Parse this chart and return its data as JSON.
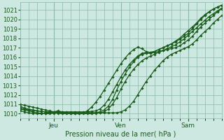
{
  "title": "",
  "xlabel": "Pression niveau de la mer( hPa )",
  "ylabel": "",
  "bg_color": "#cce8e0",
  "grid_color": "#88bba8",
  "line_color": "#1a5c1a",
  "marker_color": "#1a5c1a",
  "ylim": [
    1009.5,
    1021.8
  ],
  "xlim": [
    0,
    96
  ],
  "yticks": [
    1010,
    1011,
    1012,
    1013,
    1014,
    1015,
    1016,
    1017,
    1018,
    1019,
    1020,
    1021
  ],
  "xtick_positions": [
    16,
    48,
    80
  ],
  "xtick_labels": [
    "Jeu",
    "Ven",
    "Sam"
  ],
  "series_x": [
    [
      0,
      2,
      4,
      6,
      8,
      10,
      12,
      14,
      16,
      18,
      20,
      22,
      24,
      26,
      28,
      30,
      32,
      34,
      36,
      38,
      40,
      42,
      44,
      46,
      48,
      50,
      52,
      54,
      56,
      58,
      60,
      62,
      64,
      66,
      68,
      70,
      72,
      74,
      76,
      78,
      80,
      82,
      84,
      86,
      88,
      90,
      92,
      94,
      96
    ],
    [
      0,
      2,
      4,
      6,
      8,
      10,
      12,
      14,
      16,
      18,
      20,
      22,
      24,
      26,
      28,
      30,
      32,
      34,
      36,
      38,
      40,
      42,
      44,
      46,
      48,
      50,
      52,
      54,
      56,
      58,
      60,
      62,
      64,
      66,
      68,
      70,
      72,
      74,
      76,
      78,
      80,
      82,
      84,
      86,
      88,
      90,
      92,
      94,
      96
    ],
    [
      0,
      2,
      4,
      6,
      8,
      10,
      12,
      14,
      16,
      18,
      20,
      22,
      24,
      26,
      28,
      30,
      32,
      34,
      36,
      38,
      40,
      42,
      44,
      46,
      48,
      50,
      52,
      54,
      56,
      58,
      60,
      62,
      64,
      66,
      68,
      70,
      72,
      74,
      76,
      78,
      80,
      82,
      84,
      86,
      88,
      90,
      92,
      94,
      96
    ],
    [
      0,
      2,
      4,
      6,
      8,
      10,
      12,
      14,
      16,
      18,
      20,
      22,
      24,
      26,
      28,
      30,
      32,
      34,
      36,
      38,
      40,
      42,
      44,
      46,
      48,
      50,
      52,
      54,
      56,
      58,
      60,
      62,
      64,
      66,
      68,
      70,
      72,
      74,
      76,
      78,
      80,
      82,
      84,
      86,
      88,
      90,
      92,
      94,
      96
    ],
    [
      0,
      2,
      4,
      6,
      8,
      10,
      12,
      14,
      16,
      18,
      20,
      22,
      24,
      26,
      28,
      30,
      32,
      34,
      36,
      38,
      40,
      42,
      44,
      46,
      48,
      50,
      52,
      54,
      56,
      58,
      60,
      62,
      64,
      66,
      68,
      70,
      72,
      74,
      76,
      78,
      80,
      82,
      84,
      86,
      88,
      90,
      92,
      94,
      96
    ]
  ],
  "series_y": [
    [
      1010.3,
      1010.2,
      1010.1,
      1010.05,
      1010.0,
      1010.0,
      1010.05,
      1010.1,
      1010.2,
      1010.3,
      1010.2,
      1010.1,
      1010.05,
      1010.0,
      1010.0,
      1010.1,
      1010.3,
      1010.7,
      1011.2,
      1011.8,
      1012.5,
      1013.2,
      1013.9,
      1014.6,
      1015.3,
      1015.9,
      1016.4,
      1016.8,
      1017.05,
      1016.9,
      1016.6,
      1016.5,
      1016.6,
      1016.8,
      1017.0,
      1017.2,
      1017.4,
      1017.6,
      1017.9,
      1018.2,
      1018.5,
      1019.0,
      1019.5,
      1020.0,
      1020.4,
      1020.8,
      1021.1,
      1021.3,
      1021.5
    ],
    [
      1010.5,
      1010.4,
      1010.3,
      1010.2,
      1010.1,
      1010.05,
      1010.0,
      1010.0,
      1010.05,
      1010.1,
      1010.1,
      1010.1,
      1010.1,
      1010.1,
      1010.1,
      1010.1,
      1010.1,
      1010.1,
      1010.1,
      1010.2,
      1010.4,
      1010.8,
      1011.5,
      1012.5,
      1013.4,
      1014.2,
      1014.9,
      1015.5,
      1016.0,
      1016.3,
      1016.4,
      1016.4,
      1016.5,
      1016.6,
      1016.7,
      1016.8,
      1016.9,
      1017.0,
      1017.2,
      1017.5,
      1017.8,
      1018.2,
      1018.7,
      1019.2,
      1019.6,
      1020.0,
      1020.4,
      1020.8,
      1021.1
    ],
    [
      1011.0,
      1010.9,
      1010.8,
      1010.7,
      1010.6,
      1010.5,
      1010.4,
      1010.3,
      1010.2,
      1010.15,
      1010.1,
      1010.1,
      1010.1,
      1010.1,
      1010.1,
      1010.1,
      1010.1,
      1010.1,
      1010.1,
      1010.1,
      1010.1,
      1010.1,
      1010.1,
      1010.1,
      1010.2,
      1010.4,
      1010.8,
      1011.3,
      1012.0,
      1012.7,
      1013.4,
      1014.0,
      1014.6,
      1015.1,
      1015.6,
      1016.0,
      1016.3,
      1016.5,
      1016.7,
      1016.9,
      1017.1,
      1017.4,
      1017.8,
      1018.3,
      1018.7,
      1019.1,
      1019.6,
      1020.0,
      1020.4
    ],
    [
      1010.8,
      1010.6,
      1010.5,
      1010.4,
      1010.3,
      1010.25,
      1010.2,
      1010.2,
      1010.2,
      1010.2,
      1010.2,
      1010.2,
      1010.2,
      1010.2,
      1010.2,
      1010.2,
      1010.2,
      1010.25,
      1010.3,
      1010.5,
      1010.9,
      1011.5,
      1012.3,
      1013.1,
      1013.9,
      1014.6,
      1015.2,
      1015.7,
      1016.1,
      1016.4,
      1016.5,
      1016.5,
      1016.6,
      1016.8,
      1017.0,
      1017.2,
      1017.4,
      1017.7,
      1018.0,
      1018.4,
      1018.8,
      1019.2,
      1019.6,
      1020.1,
      1020.5,
      1020.8,
      1021.1,
      1021.3,
      1021.5
    ],
    [
      1010.6,
      1010.5,
      1010.4,
      1010.3,
      1010.3,
      1010.25,
      1010.2,
      1010.15,
      1010.1,
      1010.05,
      1010.0,
      1010.0,
      1010.0,
      1010.0,
      1010.0,
      1010.0,
      1010.0,
      1010.0,
      1010.05,
      1010.1,
      1010.2,
      1010.5,
      1011.0,
      1011.7,
      1012.6,
      1013.4,
      1014.1,
      1014.7,
      1015.2,
      1015.6,
      1015.9,
      1016.1,
      1016.3,
      1016.5,
      1016.7,
      1016.9,
      1017.1,
      1017.3,
      1017.6,
      1017.9,
      1018.3,
      1018.7,
      1019.1,
      1019.5,
      1019.9,
      1020.3,
      1020.6,
      1020.9,
      1021.2
    ]
  ],
  "linewidths": [
    0.9,
    0.9,
    0.9,
    0.9,
    0.9
  ]
}
